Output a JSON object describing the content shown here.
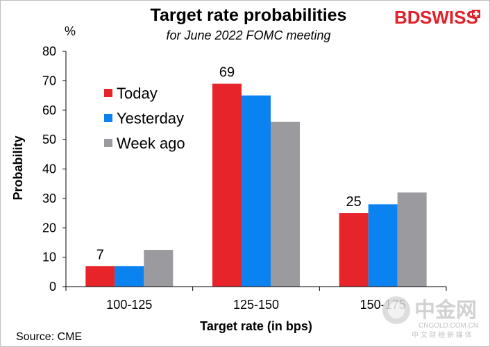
{
  "header": {
    "title": "Target rate probabilities",
    "subtitle": "for June 2022 FOMC meeting",
    "unit": "%",
    "brand_left": "BD",
    "brand_right": "SWISS",
    "source": "Source: CME"
  },
  "watermark": {
    "cn_name": "中金网",
    "domain": "CNGOLD.COM.CN",
    "tagline": "中 文 财 经 新 媒 体"
  },
  "colors": {
    "today": "#e8242b",
    "yesterday": "#0a82f0",
    "week_ago": "#9b9b9f",
    "brand": "#e0202a"
  },
  "chart_data": {
    "type": "bar",
    "title": "Target rate probabilities",
    "subtitle": "for June 2022 FOMC meeting",
    "xlabel": "Target rate (in bps)",
    "ylabel": "Probability",
    "categories": [
      "100-125",
      "125-150",
      "150-175"
    ],
    "ylim": [
      0,
      80
    ],
    "yticks": [
      0,
      10,
      20,
      30,
      40,
      50,
      60,
      70,
      80
    ],
    "legend_position": "upper-left",
    "grid": false,
    "series": [
      {
        "name": "Today",
        "values": [
          7,
          69,
          25
        ],
        "labels": [
          "7",
          "69",
          "25"
        ]
      },
      {
        "name": "Yesterday",
        "values": [
          7,
          65,
          28
        ],
        "labels": [
          "",
          "",
          ""
        ]
      },
      {
        "name": "Week ago",
        "values": [
          12.5,
          56,
          32
        ],
        "labels": [
          "",
          "",
          ""
        ]
      }
    ]
  }
}
